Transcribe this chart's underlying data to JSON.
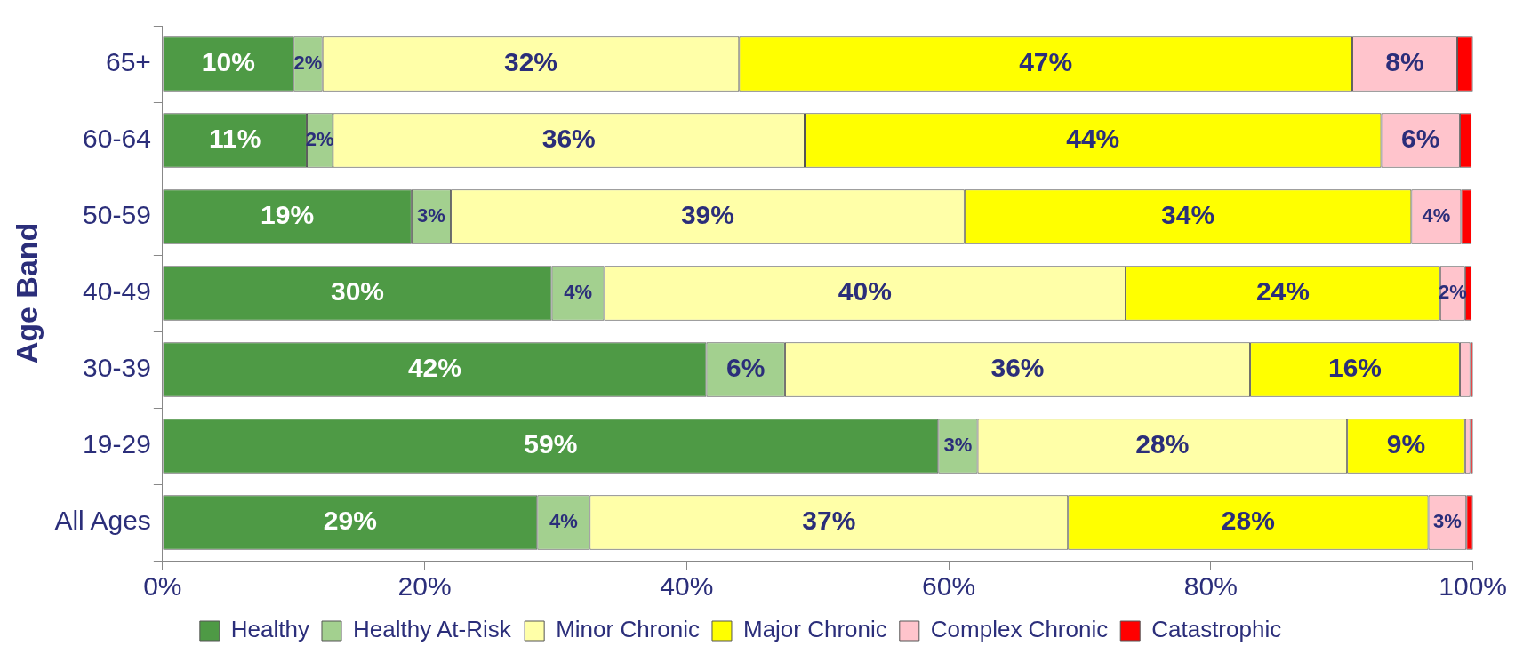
{
  "chart_data": {
    "type": "bar",
    "orientation": "horizontal",
    "stacked": true,
    "ylabel": "Age Band",
    "categories": [
      "65+",
      "60-64",
      "50-59",
      "40-49",
      "30-39",
      "19-29",
      "All Ages"
    ],
    "series": [
      {
        "name": "Healthy",
        "color": "#4e9a45",
        "values": [
          10,
          11,
          19,
          29.7,
          41.5,
          59.2,
          28.6
        ],
        "value_labels": [
          "10%",
          "11%",
          "19%",
          "30%",
          "42%",
          "59%",
          "29%"
        ]
      },
      {
        "name": "Healthy At-Risk",
        "color": "#a3d08f",
        "values": [
          2.2,
          2,
          3,
          4,
          6,
          3,
          4
        ],
        "value_labels": [
          "2%",
          "2%",
          "3%",
          "4%",
          "6%",
          "3%",
          "4%"
        ]
      },
      {
        "name": "Minor Chronic",
        "color": "#ffffa8",
        "values": [
          31.8,
          36,
          39.2,
          39.8,
          35.5,
          28.2,
          36.5
        ],
        "value_labels": [
          "32%",
          "36%",
          "39%",
          "40%",
          "36%",
          "28%",
          "37%"
        ]
      },
      {
        "name": "Major Chronic",
        "color": "#ffff00",
        "values": [
          46.8,
          44,
          34.1,
          24,
          16,
          9,
          27.5
        ],
        "value_labels": [
          "47%",
          "44%",
          "34%",
          "24%",
          "16%",
          "9%",
          "28%"
        ]
      },
      {
        "name": "Complex Chronic",
        "color": "#ffc4cc",
        "values": [
          8,
          6,
          3.8,
          1.9,
          0.8,
          0.4,
          2.9
        ],
        "value_labels": [
          "8%",
          "6%",
          "4%",
          "2%",
          null,
          null,
          "3%"
        ]
      },
      {
        "name": "Catastrophic",
        "color": "#ff0000",
        "values": [
          1.2,
          0.9,
          0.8,
          0.5,
          0.2,
          0.2,
          0.5
        ],
        "value_labels": [
          null,
          null,
          null,
          null,
          null,
          null,
          null
        ]
      }
    ],
    "xlim": [
      0,
      100
    ],
    "xticks": [
      {
        "value": 0,
        "label": "0%"
      },
      {
        "value": 20,
        "label": "20%"
      },
      {
        "value": 40,
        "label": "40%"
      },
      {
        "value": 60,
        "label": "60%"
      },
      {
        "value": 80,
        "label": "80%"
      },
      {
        "value": 100,
        "label": "100%"
      }
    ],
    "legend": "bottom",
    "grid": false
  }
}
